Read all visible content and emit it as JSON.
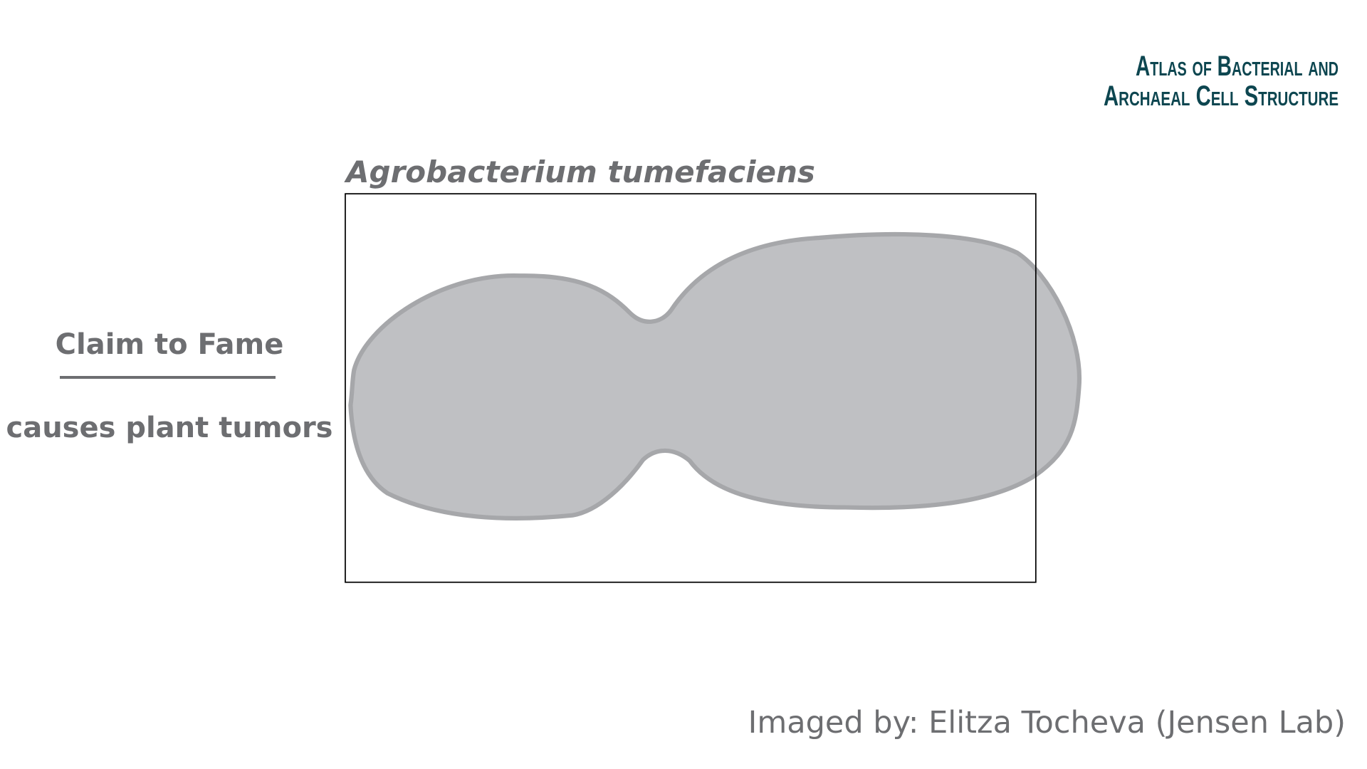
{
  "logo": {
    "line1": "Atlas of Bacterial and",
    "line2": "Archaeal Cell Structure"
  },
  "title": "Agrobacterium tumefaciens",
  "claim": {
    "heading": "Claim to Fame",
    "text": "causes plant tumors"
  },
  "credit": "Imaged by: Elitza Tocheva (Jensen Lab)"
}
